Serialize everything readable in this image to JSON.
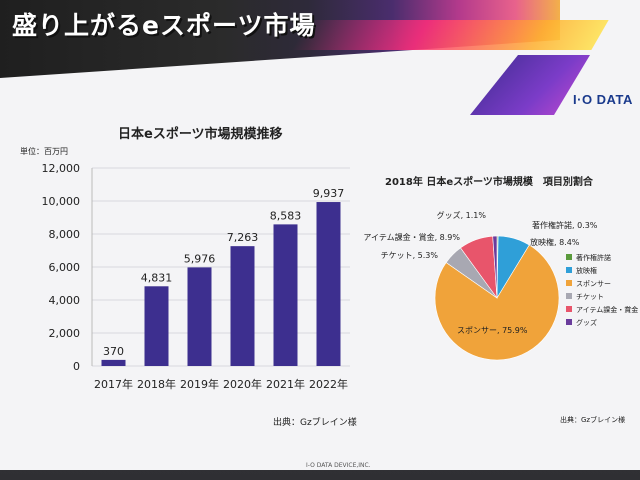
{
  "slide": {
    "title": "盛り上がるeスポーツ市場",
    "logo": "I·O DATA",
    "footer": "I-O DATA DEVICE,INC."
  },
  "colors": {
    "bar": "#3d2f8f",
    "accent": "#f0a33a"
  },
  "chart_data": [
    {
      "type": "bar",
      "title": "日本eスポーツ市場規模推移",
      "unit_label": "単位：百万円",
      "source": "出典：Gzブレイン様",
      "categories": [
        "2017年",
        "2018年",
        "2019年",
        "2020年",
        "2021年",
        "2022年"
      ],
      "values": [
        370,
        4831,
        5976,
        7263,
        8583,
        9937
      ],
      "value_labels": [
        "370",
        "4,831",
        "5,976",
        "7,263",
        "8,583",
        "9,937"
      ],
      "yticks": [
        "0",
        "2,000",
        "4,000",
        "6,000",
        "8,000",
        "10,000",
        "12,000"
      ],
      "ylim": [
        0,
        12000
      ]
    },
    {
      "type": "pie",
      "title": "2018年 日本eスポーツ市場規模　項目別割合",
      "source": "出典：Gzブレイン様",
      "slices": [
        {
          "name": "著作権許諾",
          "value": 0.3,
          "color": "#5a9a3c",
          "label": "著作権許諾, 0.3%"
        },
        {
          "name": "放映権",
          "value": 8.4,
          "color": "#2f9fd8",
          "label": "放映権, 8.4%"
        },
        {
          "name": "スポンサー",
          "value": 75.9,
          "color": "#f0a33a",
          "label": "スポンサー, 75.9%"
        },
        {
          "name": "チケット",
          "value": 5.3,
          "color": "#a8a8b2",
          "label": "チケット, 5.3%"
        },
        {
          "name": "アイテム課金・賞金",
          "value": 8.9,
          "color": "#e8556b",
          "label": "アイテム課金・賞金, 8.9%"
        },
        {
          "name": "グッズ",
          "value": 1.1,
          "color": "#6a3c9c",
          "label": "グッズ, 1.1%"
        }
      ]
    }
  ]
}
